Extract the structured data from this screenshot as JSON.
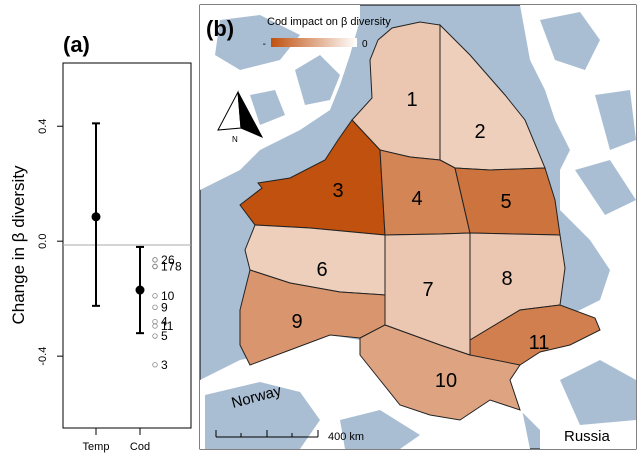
{
  "chart_data": [
    {
      "type": "scatter",
      "panel_label": "(a)",
      "ylabel": "Change in β diversity",
      "ylim": [
        -0.65,
        0.62
      ],
      "yticks": [
        0.4,
        0.0,
        -0.4
      ],
      "ytick_labels": [
        "0.4",
        "0.0",
        "-0.4"
      ],
      "reference_line": 0.0,
      "categories": [
        "Temp",
        "Cod"
      ],
      "estimates": [
        {
          "category": "Temp",
          "mean": 0.085,
          "lower": -0.225,
          "upper": 0.41
        },
        {
          "category": "Cod",
          "mean": -0.17,
          "lower": -0.32,
          "upper": -0.02
        }
      ],
      "region_points": [
        {
          "label": "2",
          "value": -0.065
        },
        {
          "label": "6",
          "value": -0.065
        },
        {
          "label": "1",
          "value": -0.088
        },
        {
          "label": "7",
          "value": -0.088
        },
        {
          "label": "8",
          "value": -0.088
        },
        {
          "label": "10",
          "value": -0.19
        },
        {
          "label": "9",
          "value": -0.23
        },
        {
          "label": "4",
          "value": -0.28
        },
        {
          "label": "11",
          "value": -0.295
        },
        {
          "label": "5",
          "value": -0.33
        },
        {
          "label": "3",
          "value": -0.43
        }
      ]
    },
    {
      "type": "map",
      "panel_label": "(b)",
      "legend_title": "Cod impact on β diversity",
      "legend_min_label": "-",
      "legend_max_label": "0",
      "colors": {
        "high": "#c0510f",
        "low": "#ffffff"
      },
      "regions": [
        {
          "label": "1",
          "impact": -0.088
        },
        {
          "label": "2",
          "impact": -0.065
        },
        {
          "label": "3",
          "impact": -0.43
        },
        {
          "label": "4",
          "impact": -0.28
        },
        {
          "label": "5",
          "impact": -0.33
        },
        {
          "label": "6",
          "impact": -0.065
        },
        {
          "label": "7",
          "impact": -0.088
        },
        {
          "label": "8",
          "impact": -0.088
        },
        {
          "label": "9",
          "impact": -0.23
        },
        {
          "label": "10",
          "impact": -0.19
        },
        {
          "label": "11",
          "impact": -0.295
        }
      ],
      "place_labels": [
        "Norway",
        "Russia"
      ],
      "north_label": "N",
      "scale_label": "400 km"
    }
  ]
}
